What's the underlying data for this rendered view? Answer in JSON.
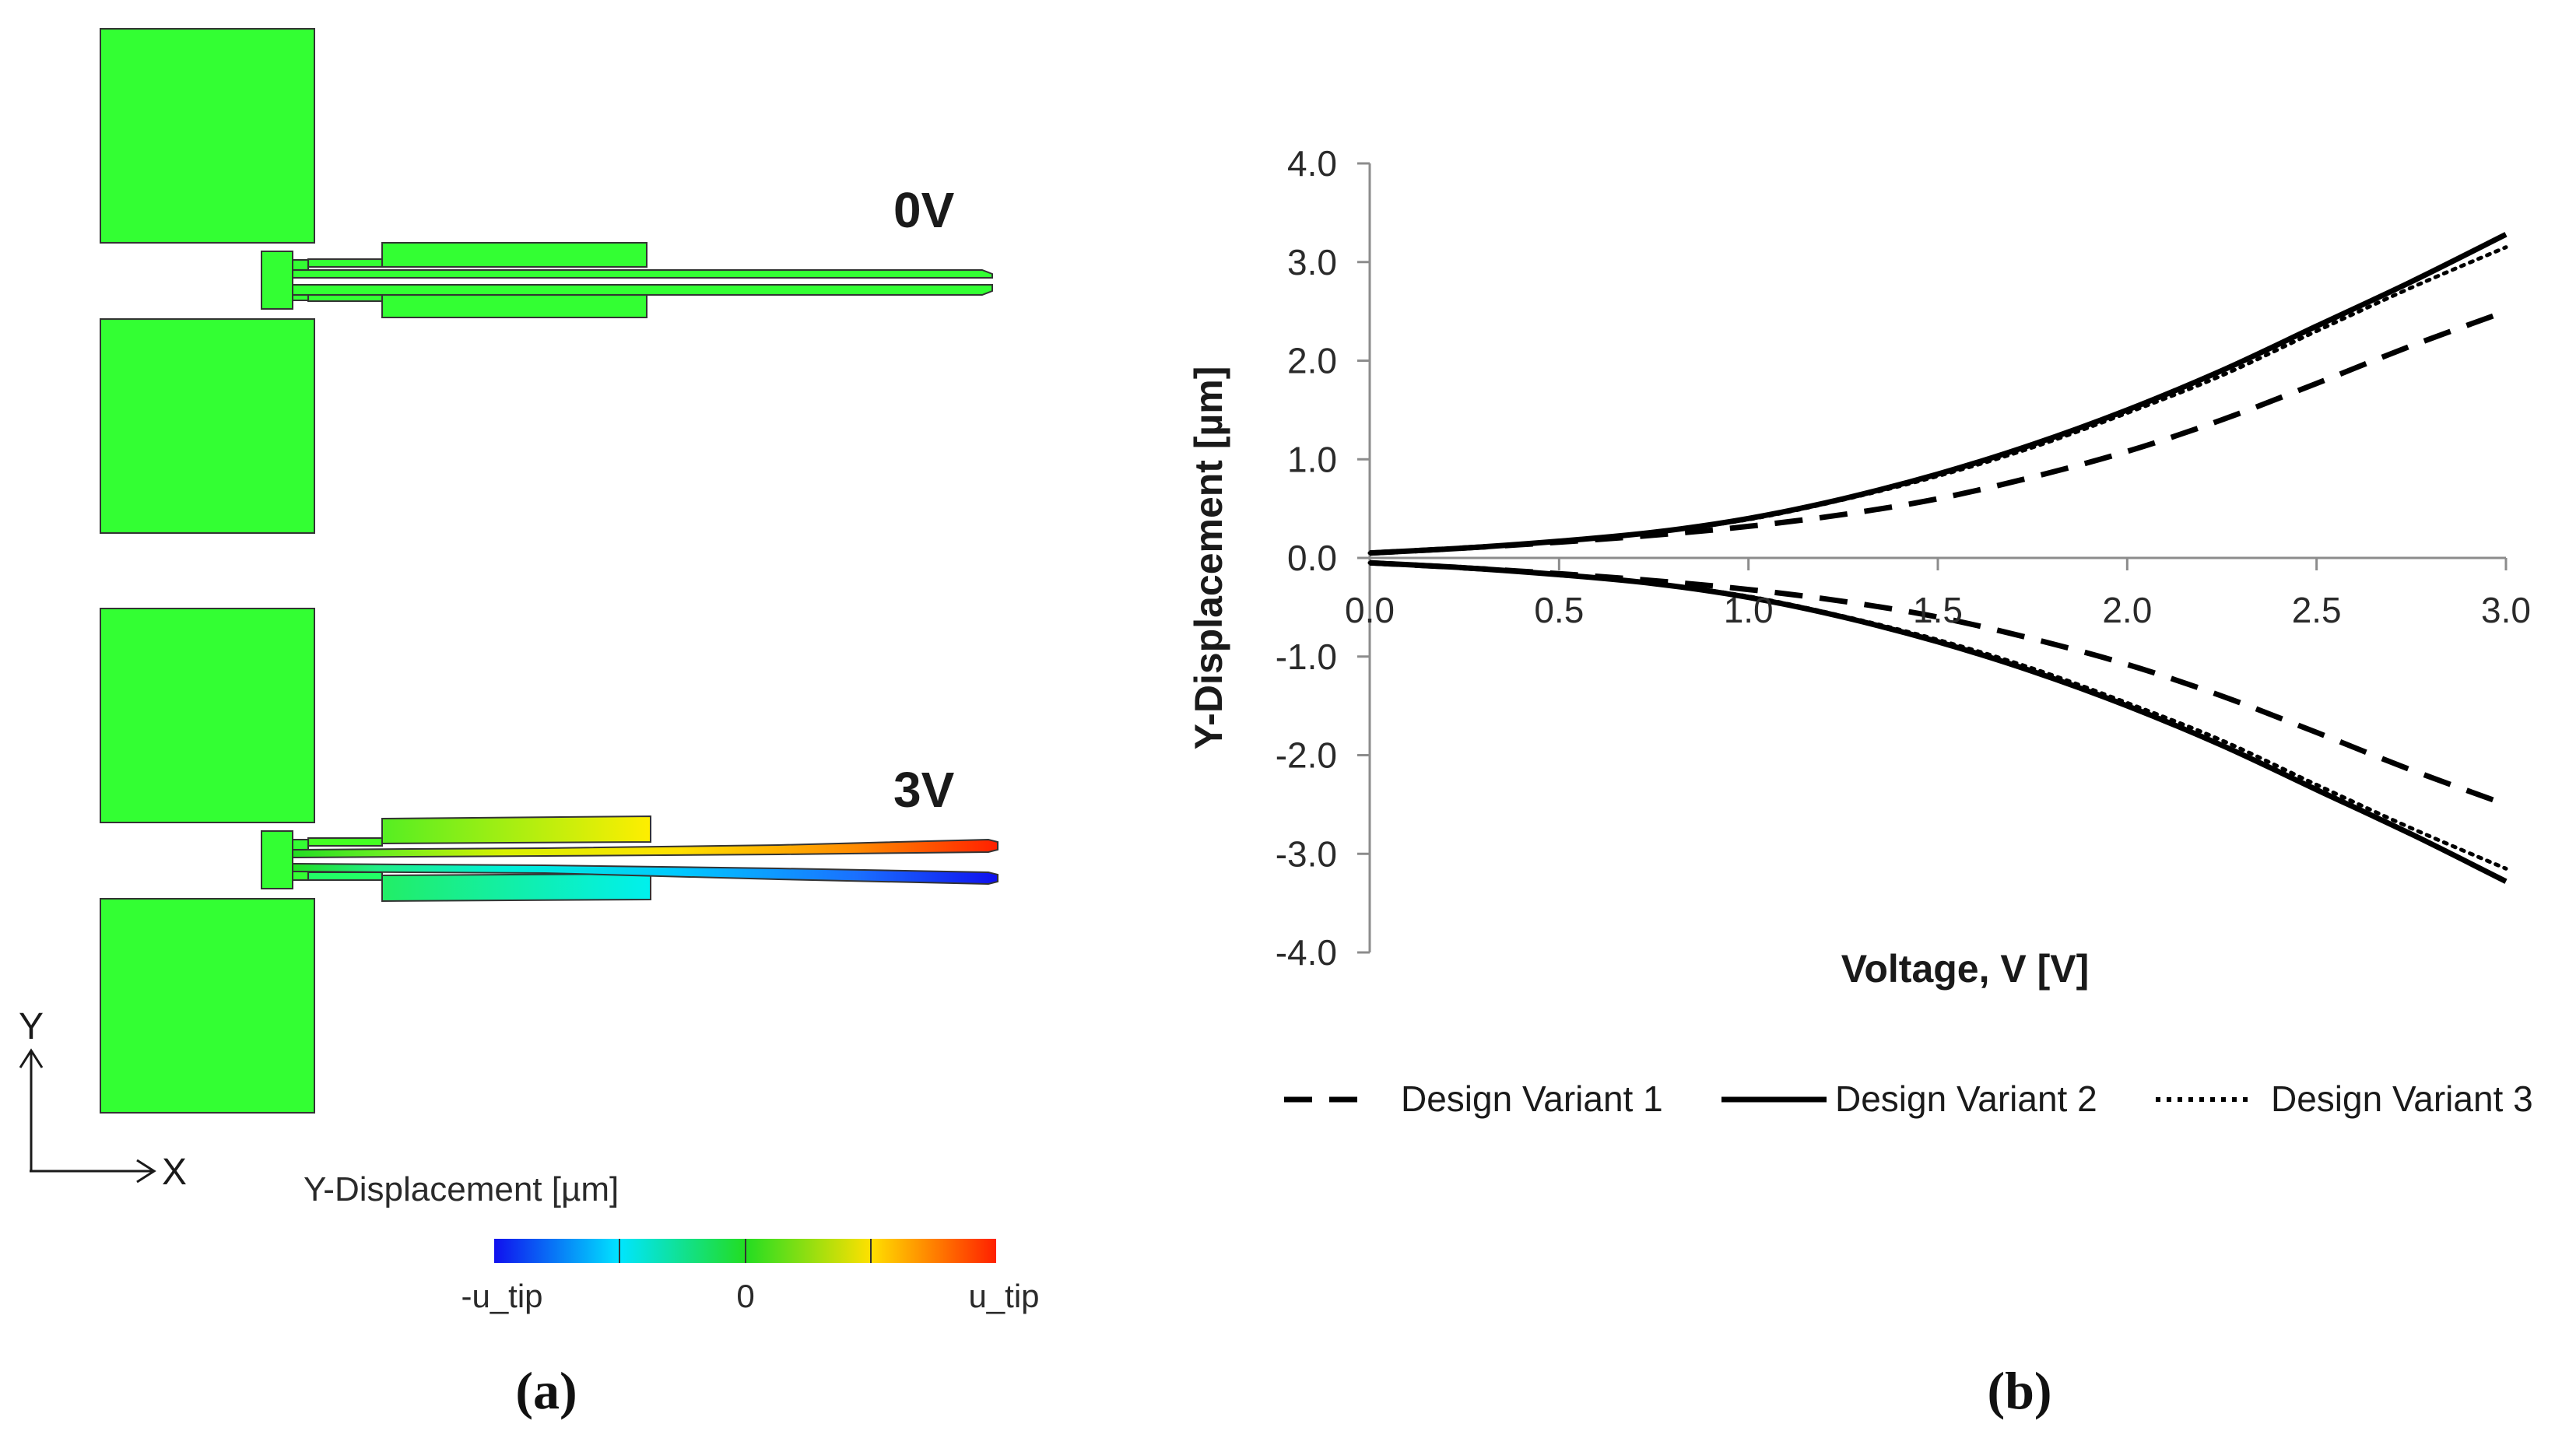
{
  "panel_a": {
    "label": "(a)",
    "states": [
      {
        "label": "0V"
      },
      {
        "label": "3V"
      }
    ],
    "axes": {
      "y_label": "Y",
      "x_label": "X"
    },
    "legend": {
      "title": "Y-Displacement [µm]",
      "min_label": "-u_tip",
      "mid_label": "0",
      "max_label": "u_tip",
      "colors": [
        "#1010ee",
        "#00e5ff",
        "#22dd22",
        "#ffe000",
        "#ff2000"
      ]
    },
    "colors": {
      "neutral": "#33ff33",
      "frame": "#333333"
    }
  },
  "panel_b": {
    "label": "(b)"
  },
  "chart_data": {
    "type": "line",
    "title": "",
    "xlabel": "Voltage, V [V]",
    "ylabel": "Y-Displacement [µm]",
    "xlim": [
      0,
      3
    ],
    "ylim": [
      -4,
      4
    ],
    "x_ticks": [
      "0.0",
      "0.5",
      "1.0",
      "1.5",
      "2.0",
      "2.5",
      "3.0"
    ],
    "y_ticks": [
      "4.0",
      "3.0",
      "2.0",
      "1.0",
      "0.0",
      "-1.0",
      "-2.0",
      "-3.0",
      "-4.0"
    ],
    "x": [
      0,
      0.25,
      0.5,
      0.75,
      1.0,
      1.25,
      1.5,
      1.75,
      2.0,
      2.25,
      2.5,
      2.75,
      3.0
    ],
    "series": [
      {
        "name": "Design Variant 1",
        "style": "dashed",
        "values": [
          0.05,
          0.1,
          0.16,
          0.23,
          0.32,
          0.44,
          0.6,
          0.82,
          1.08,
          1.4,
          1.77,
          2.15,
          2.5
        ]
      },
      {
        "name": "Design Variant 1",
        "style": "dashed",
        "values": [
          -0.05,
          -0.1,
          -0.16,
          -0.23,
          -0.32,
          -0.44,
          -0.6,
          -0.82,
          -1.08,
          -1.4,
          -1.77,
          -2.15,
          -2.5
        ]
      },
      {
        "name": "Design Variant 2",
        "style": "solid",
        "values": [
          0.05,
          0.1,
          0.17,
          0.26,
          0.4,
          0.6,
          0.85,
          1.15,
          1.5,
          1.9,
          2.35,
          2.8,
          3.28
        ]
      },
      {
        "name": "Design Variant 2",
        "style": "solid",
        "values": [
          -0.05,
          -0.1,
          -0.17,
          -0.26,
          -0.4,
          -0.6,
          -0.85,
          -1.15,
          -1.5,
          -1.9,
          -2.35,
          -2.8,
          -3.28
        ]
      },
      {
        "name": "Design Variant 3",
        "style": "dotted",
        "values": [
          0.05,
          0.1,
          0.17,
          0.26,
          0.39,
          0.59,
          0.83,
          1.12,
          1.47,
          1.85,
          2.3,
          2.74,
          3.15
        ]
      },
      {
        "name": "Design Variant 3",
        "style": "dotted",
        "values": [
          -0.05,
          -0.1,
          -0.17,
          -0.26,
          -0.39,
          -0.59,
          -0.83,
          -1.12,
          -1.47,
          -1.85,
          -2.3,
          -2.74,
          -3.15
        ]
      }
    ],
    "legend": [
      {
        "name": "Design Variant 1",
        "style": "dashed"
      },
      {
        "name": "Design Variant 2",
        "style": "solid"
      },
      {
        "name": "Design Variant 3",
        "style": "dotted"
      }
    ],
    "legend_position": "bottom",
    "grid": false
  }
}
